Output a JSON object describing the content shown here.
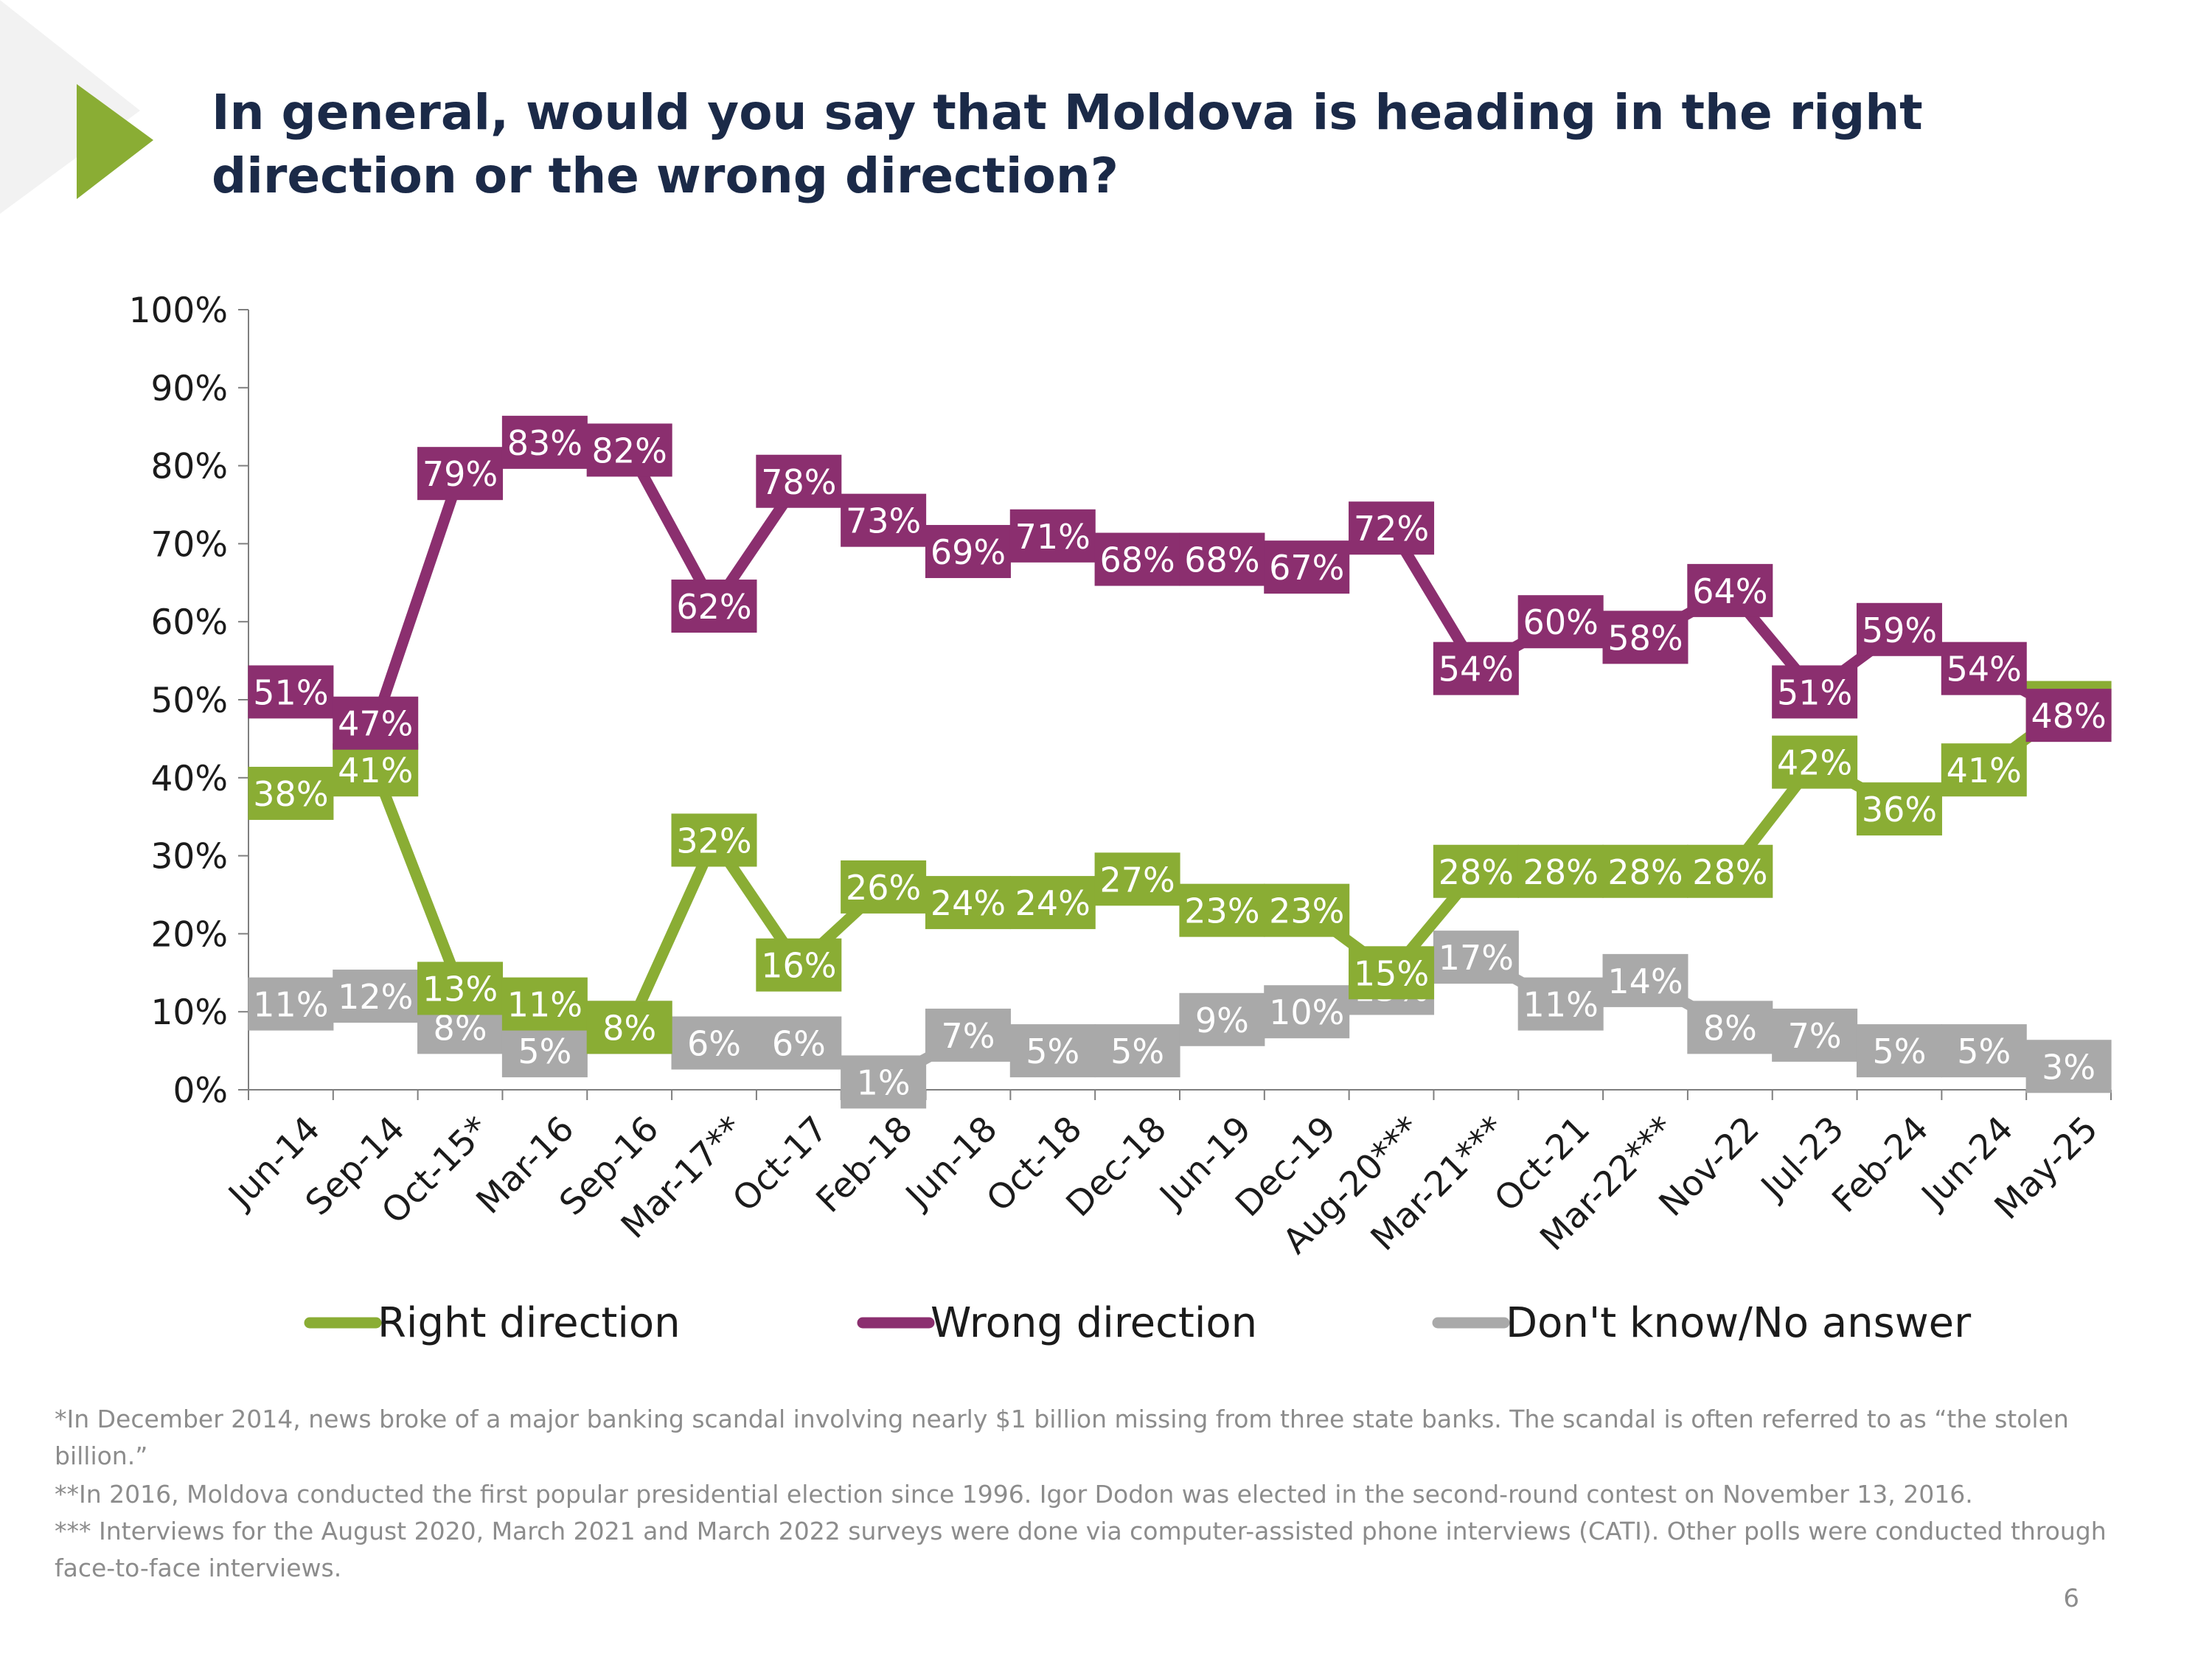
{
  "slide": {
    "title": "In general, would you say that Moldova is heading in the right direction or the wrong direction?",
    "page_number": "6",
    "accent_color": "#8aad34"
  },
  "footnotes": [
    "*In December 2014, news broke of a major banking scandal involving nearly $1 billion missing from three state banks. The scandal is often referred to as “the stolen billion.”",
    "**In 2016, Moldova conducted the first popular presidential election since 1996. Igor Dodon was elected in the second-round contest on November 13, 2016.",
    "*** Interviews for the August 2020, March 2021 and March 2022 surveys were done via computer-assisted phone interviews (CATI). Other polls were conducted through face-to-face interviews."
  ],
  "chart_data": {
    "type": "line",
    "title": "In general, would you say that Moldova is heading in the right direction or the wrong direction?",
    "categories": [
      "Jun-14",
      "Sep-14",
      "Oct-15*",
      "Mar-16",
      "Sep-16",
      "Mar-17**",
      "Oct-17",
      "Feb-18",
      "Jun-18",
      "Oct-18",
      "Dec-18",
      "Jun-19",
      "Dec-19",
      "Aug-20***",
      "Mar-21***",
      "Oct-21",
      "Mar-22***",
      "Nov-22",
      "Jul-23",
      "Feb-24",
      "Jun-24",
      "May-25"
    ],
    "y_ticks": [
      "0%",
      "10%",
      "20%",
      "30%",
      "40%",
      "50%",
      "60%",
      "70%",
      "80%",
      "90%",
      "100%"
    ],
    "ylim": [
      0,
      100
    ],
    "unit": "%",
    "legend_position": "bottom",
    "series": [
      {
        "name": "Right direction",
        "color": "#8aad34",
        "label_text_color": "#ffffff",
        "values": [
          38,
          41,
          13,
          11,
          8,
          32,
          16,
          26,
          24,
          24,
          27,
          23,
          23,
          15,
          28,
          28,
          28,
          28,
          42,
          36,
          41,
          49
        ]
      },
      {
        "name": "Wrong direction",
        "color": "#8b2f6f",
        "label_text_color": "#ffffff",
        "values": [
          51,
          47,
          79,
          83,
          82,
          62,
          78,
          73,
          69,
          71,
          68,
          68,
          67,
          72,
          54,
          60,
          58,
          64,
          51,
          59,
          54,
          48
        ]
      },
      {
        "name": "Don't know/No answer",
        "color": "#a9a9a9",
        "label_text_color": "#ffffff",
        "values": [
          11,
          12,
          8,
          5,
          8,
          6,
          6,
          1,
          7,
          5,
          5,
          9,
          10,
          13,
          17,
          11,
          14,
          8,
          7,
          5,
          5,
          3
        ]
      }
    ]
  }
}
